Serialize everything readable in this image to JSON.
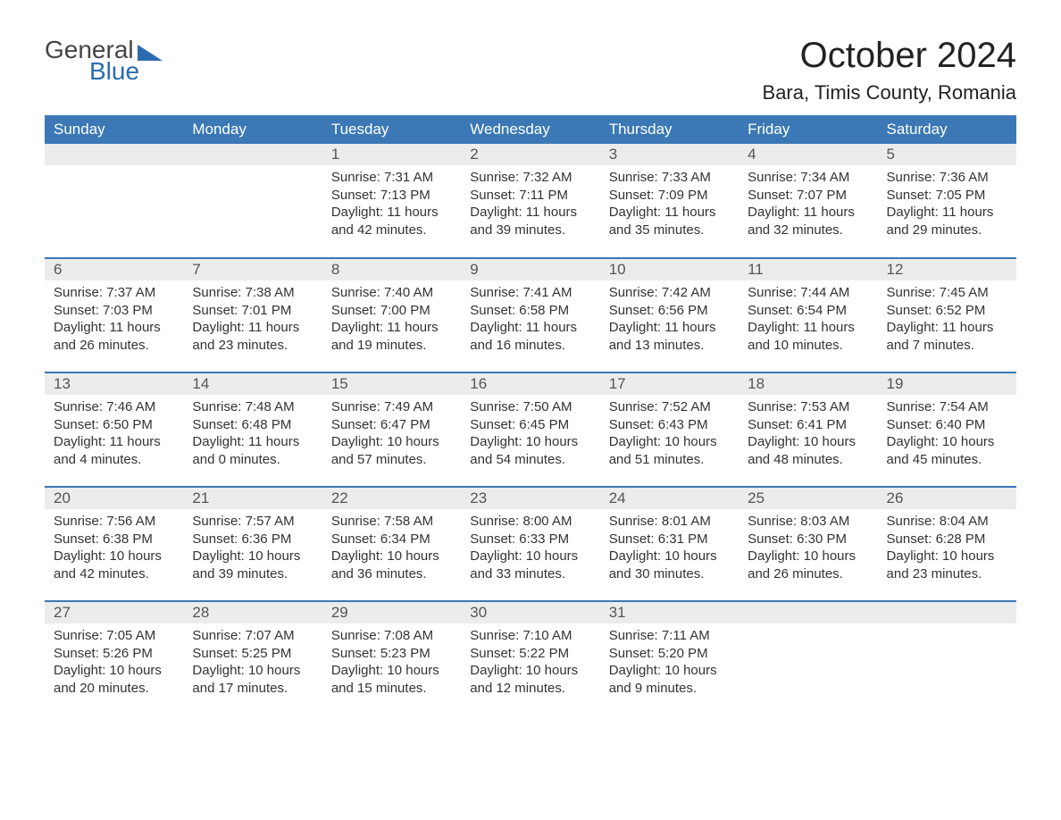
{
  "logo": {
    "word1": "General",
    "word2": "Blue",
    "tri_color": "#2b6cb0"
  },
  "title": "October 2024",
  "location": "Bara, Timis County, Romania",
  "colors": {
    "header_bg": "#3b78b5",
    "header_text": "#ffffff",
    "daynum_bg": "#ececec",
    "daynum_text": "#555555",
    "body_text": "#333333",
    "rule": "#3b78b5",
    "page_bg": "#ffffff"
  },
  "fonts": {
    "month_title_pt": 40,
    "location_pt": 22,
    "dayheader_pt": 17,
    "daynum_pt": 17,
    "body_pt": 15
  },
  "layout": {
    "columns": 7,
    "rows": 5,
    "col_width_pct": 14.2857
  },
  "day_headers": [
    "Sunday",
    "Monday",
    "Tuesday",
    "Wednesday",
    "Thursday",
    "Friday",
    "Saturday"
  ],
  "weeks": [
    [
      null,
      null,
      {
        "n": "1",
        "sr": "7:31 AM",
        "ss": "7:13 PM",
        "dl": "11 hours and 42 minutes."
      },
      {
        "n": "2",
        "sr": "7:32 AM",
        "ss": "7:11 PM",
        "dl": "11 hours and 39 minutes."
      },
      {
        "n": "3",
        "sr": "7:33 AM",
        "ss": "7:09 PM",
        "dl": "11 hours and 35 minutes."
      },
      {
        "n": "4",
        "sr": "7:34 AM",
        "ss": "7:07 PM",
        "dl": "11 hours and 32 minutes."
      },
      {
        "n": "5",
        "sr": "7:36 AM",
        "ss": "7:05 PM",
        "dl": "11 hours and 29 minutes."
      }
    ],
    [
      {
        "n": "6",
        "sr": "7:37 AM",
        "ss": "7:03 PM",
        "dl": "11 hours and 26 minutes."
      },
      {
        "n": "7",
        "sr": "7:38 AM",
        "ss": "7:01 PM",
        "dl": "11 hours and 23 minutes."
      },
      {
        "n": "8",
        "sr": "7:40 AM",
        "ss": "7:00 PM",
        "dl": "11 hours and 19 minutes."
      },
      {
        "n": "9",
        "sr": "7:41 AM",
        "ss": "6:58 PM",
        "dl": "11 hours and 16 minutes."
      },
      {
        "n": "10",
        "sr": "7:42 AM",
        "ss": "6:56 PM",
        "dl": "11 hours and 13 minutes."
      },
      {
        "n": "11",
        "sr": "7:44 AM",
        "ss": "6:54 PM",
        "dl": "11 hours and 10 minutes."
      },
      {
        "n": "12",
        "sr": "7:45 AM",
        "ss": "6:52 PM",
        "dl": "11 hours and 7 minutes."
      }
    ],
    [
      {
        "n": "13",
        "sr": "7:46 AM",
        "ss": "6:50 PM",
        "dl": "11 hours and 4 minutes."
      },
      {
        "n": "14",
        "sr": "7:48 AM",
        "ss": "6:48 PM",
        "dl": "11 hours and 0 minutes."
      },
      {
        "n": "15",
        "sr": "7:49 AM",
        "ss": "6:47 PM",
        "dl": "10 hours and 57 minutes."
      },
      {
        "n": "16",
        "sr": "7:50 AM",
        "ss": "6:45 PM",
        "dl": "10 hours and 54 minutes."
      },
      {
        "n": "17",
        "sr": "7:52 AM",
        "ss": "6:43 PM",
        "dl": "10 hours and 51 minutes."
      },
      {
        "n": "18",
        "sr": "7:53 AM",
        "ss": "6:41 PM",
        "dl": "10 hours and 48 minutes."
      },
      {
        "n": "19",
        "sr": "7:54 AM",
        "ss": "6:40 PM",
        "dl": "10 hours and 45 minutes."
      }
    ],
    [
      {
        "n": "20",
        "sr": "7:56 AM",
        "ss": "6:38 PM",
        "dl": "10 hours and 42 minutes."
      },
      {
        "n": "21",
        "sr": "7:57 AM",
        "ss": "6:36 PM",
        "dl": "10 hours and 39 minutes."
      },
      {
        "n": "22",
        "sr": "7:58 AM",
        "ss": "6:34 PM",
        "dl": "10 hours and 36 minutes."
      },
      {
        "n": "23",
        "sr": "8:00 AM",
        "ss": "6:33 PM",
        "dl": "10 hours and 33 minutes."
      },
      {
        "n": "24",
        "sr": "8:01 AM",
        "ss": "6:31 PM",
        "dl": "10 hours and 30 minutes."
      },
      {
        "n": "25",
        "sr": "8:03 AM",
        "ss": "6:30 PM",
        "dl": "10 hours and 26 minutes."
      },
      {
        "n": "26",
        "sr": "8:04 AM",
        "ss": "6:28 PM",
        "dl": "10 hours and 23 minutes."
      }
    ],
    [
      {
        "n": "27",
        "sr": "7:05 AM",
        "ss": "5:26 PM",
        "dl": "10 hours and 20 minutes."
      },
      {
        "n": "28",
        "sr": "7:07 AM",
        "ss": "5:25 PM",
        "dl": "10 hours and 17 minutes."
      },
      {
        "n": "29",
        "sr": "7:08 AM",
        "ss": "5:23 PM",
        "dl": "10 hours and 15 minutes."
      },
      {
        "n": "30",
        "sr": "7:10 AM",
        "ss": "5:22 PM",
        "dl": "10 hours and 12 minutes."
      },
      {
        "n": "31",
        "sr": "7:11 AM",
        "ss": "5:20 PM",
        "dl": "10 hours and 9 minutes."
      },
      null,
      null
    ]
  ],
  "labels": {
    "sunrise": "Sunrise: ",
    "sunset": "Sunset: ",
    "daylight": "Daylight: "
  }
}
